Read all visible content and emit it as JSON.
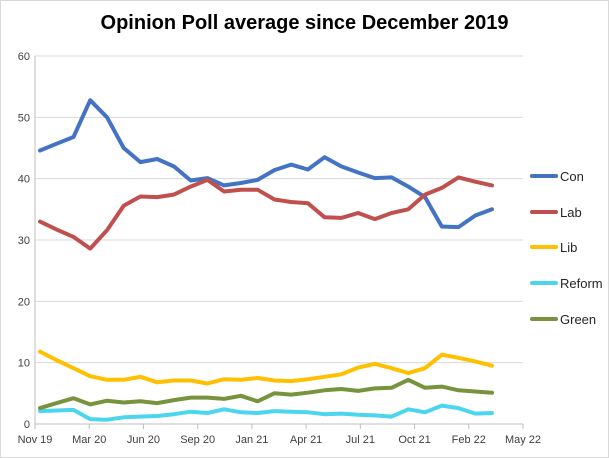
{
  "chart_data": {
    "type": "line",
    "title": "Opinion Poll average since December 2019",
    "xlabel": "",
    "ylabel": "",
    "ylim": [
      0,
      60
    ],
    "yticks": [
      "0",
      "10",
      "20",
      "30",
      "40",
      "50",
      "60"
    ],
    "xticks": [
      "Nov 19",
      "Mar 20",
      "Jun 20",
      "Sep 20",
      "Jan 21",
      "Apr 21",
      "Jul 21",
      "Oct 21",
      "Feb 22",
      "May 22"
    ],
    "grid": "horizontal",
    "legend_position": "right",
    "series": [
      {
        "name": "Con",
        "color": "#4472c4",
        "values": [
          44.6,
          45.7,
          46.8,
          52.8,
          50.0,
          45.0,
          42.7,
          43.2,
          42.0,
          39.7,
          40.1,
          38.9,
          39.3,
          39.8,
          41.4,
          42.3,
          41.5,
          43.5,
          42.0,
          41.0,
          40.1,
          40.2,
          38.7,
          37.0,
          32.2,
          32.1,
          34.0,
          35.0
        ]
      },
      {
        "name": "Lab",
        "color": "#c0504d",
        "values": [
          33.0,
          31.7,
          30.5,
          28.6,
          31.6,
          35.6,
          37.1,
          37.0,
          37.4,
          38.7,
          39.8,
          37.9,
          38.2,
          38.2,
          36.6,
          36.2,
          36.0,
          33.7,
          33.6,
          34.4,
          33.4,
          34.4,
          35.0,
          37.4,
          38.5,
          40.2,
          39.5,
          38.9
        ]
      },
      {
        "name": "Lib",
        "color": "#ffc000",
        "values": [
          11.8,
          10.4,
          9.1,
          7.8,
          7.2,
          7.2,
          7.7,
          6.8,
          7.1,
          7.1,
          6.6,
          7.3,
          7.2,
          7.5,
          7.1,
          7.0,
          7.3,
          7.7,
          8.1,
          9.2,
          9.8,
          9.1,
          8.3,
          9.1,
          11.3,
          10.8,
          10.2,
          9.5
        ]
      },
      {
        "name": "Reform",
        "color": "#4bd5ee",
        "values": [
          2.1,
          2.2,
          2.3,
          0.8,
          0.7,
          1.1,
          1.2,
          1.3,
          1.6,
          2.0,
          1.8,
          2.4,
          1.9,
          1.8,
          2.1,
          2.0,
          1.9,
          1.6,
          1.7,
          1.5,
          1.4,
          1.2,
          2.4,
          1.9,
          3.0,
          2.6,
          1.7,
          1.8
        ]
      },
      {
        "name": "Green",
        "color": "#77933c",
        "values": [
          2.6,
          3.4,
          4.2,
          3.2,
          3.8,
          3.5,
          3.7,
          3.4,
          3.9,
          4.3,
          4.3,
          4.1,
          4.6,
          3.7,
          5.0,
          4.8,
          5.1,
          5.5,
          5.7,
          5.4,
          5.8,
          5.9,
          7.2,
          5.9,
          6.1,
          5.5,
          5.3,
          5.1
        ]
      }
    ]
  }
}
